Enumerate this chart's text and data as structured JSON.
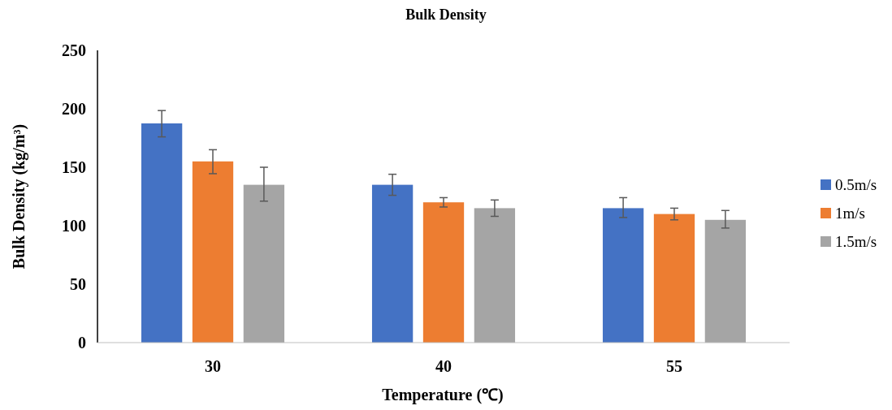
{
  "chart_data": {
    "type": "bar",
    "title": "Bulk Density",
    "xlabel": "Temperature (℃)",
    "ylabel": "Bulk Density (kg/m³)",
    "categories": [
      "30",
      "40",
      "55"
    ],
    "series": [
      {
        "name": "0.5m/s",
        "color": "#4472c4",
        "values": [
          187.5,
          135,
          115
        ],
        "errors": [
          [
            176,
            198.5
          ],
          [
            126,
            144
          ],
          [
            107,
            124
          ]
        ]
      },
      {
        "name": "1m/s",
        "color": "#ed7d31",
        "values": [
          155,
          120,
          110
        ],
        "errors": [
          [
            144.5,
            165
          ],
          [
            116,
            124
          ],
          [
            105,
            115
          ]
        ]
      },
      {
        "name": "1.5m/s",
        "color": "#a5a5a5",
        "values": [
          135,
          115,
          105
        ],
        "errors": [
          [
            121,
            150
          ],
          [
            108,
            122
          ],
          [
            98,
            113
          ]
        ]
      }
    ],
    "ylim": [
      0,
      250
    ],
    "yticks": [
      0,
      50,
      100,
      150,
      200,
      250
    ],
    "grid": false,
    "legend": "right"
  }
}
